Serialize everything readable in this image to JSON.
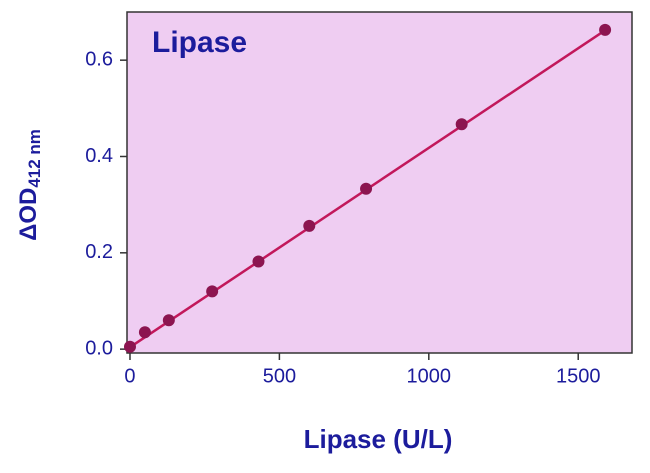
{
  "chart_data": {
    "type": "scatter",
    "title": "Lipase",
    "x_label": "Lipase (U/L)",
    "y_label": {
      "main": "ΔOD",
      "sub": "412 nm"
    },
    "series": [
      {
        "color": "#8c1550",
        "x": [
          0,
          50,
          130,
          275,
          430,
          600,
          790,
          1110,
          1590
        ],
        "values": [
          0.005,
          0.035,
          0.06,
          0.12,
          0.182,
          0.256,
          0.333,
          0.467,
          0.663
        ]
      }
    ],
    "fit": {
      "color": "#c2185b",
      "x": [
        0,
        1590
      ],
      "values": [
        0.004,
        0.662
      ]
    },
    "xlim": [
      -10,
      1680
    ],
    "ylim": [
      -0.008,
      0.7
    ],
    "xticks": [
      0,
      500,
      1000,
      1500
    ],
    "yticks": [
      {
        "value": 0,
        "label": "0.0"
      },
      0.2,
      0.4,
      0.6
    ],
    "plot_color": "#efcdf2"
  }
}
